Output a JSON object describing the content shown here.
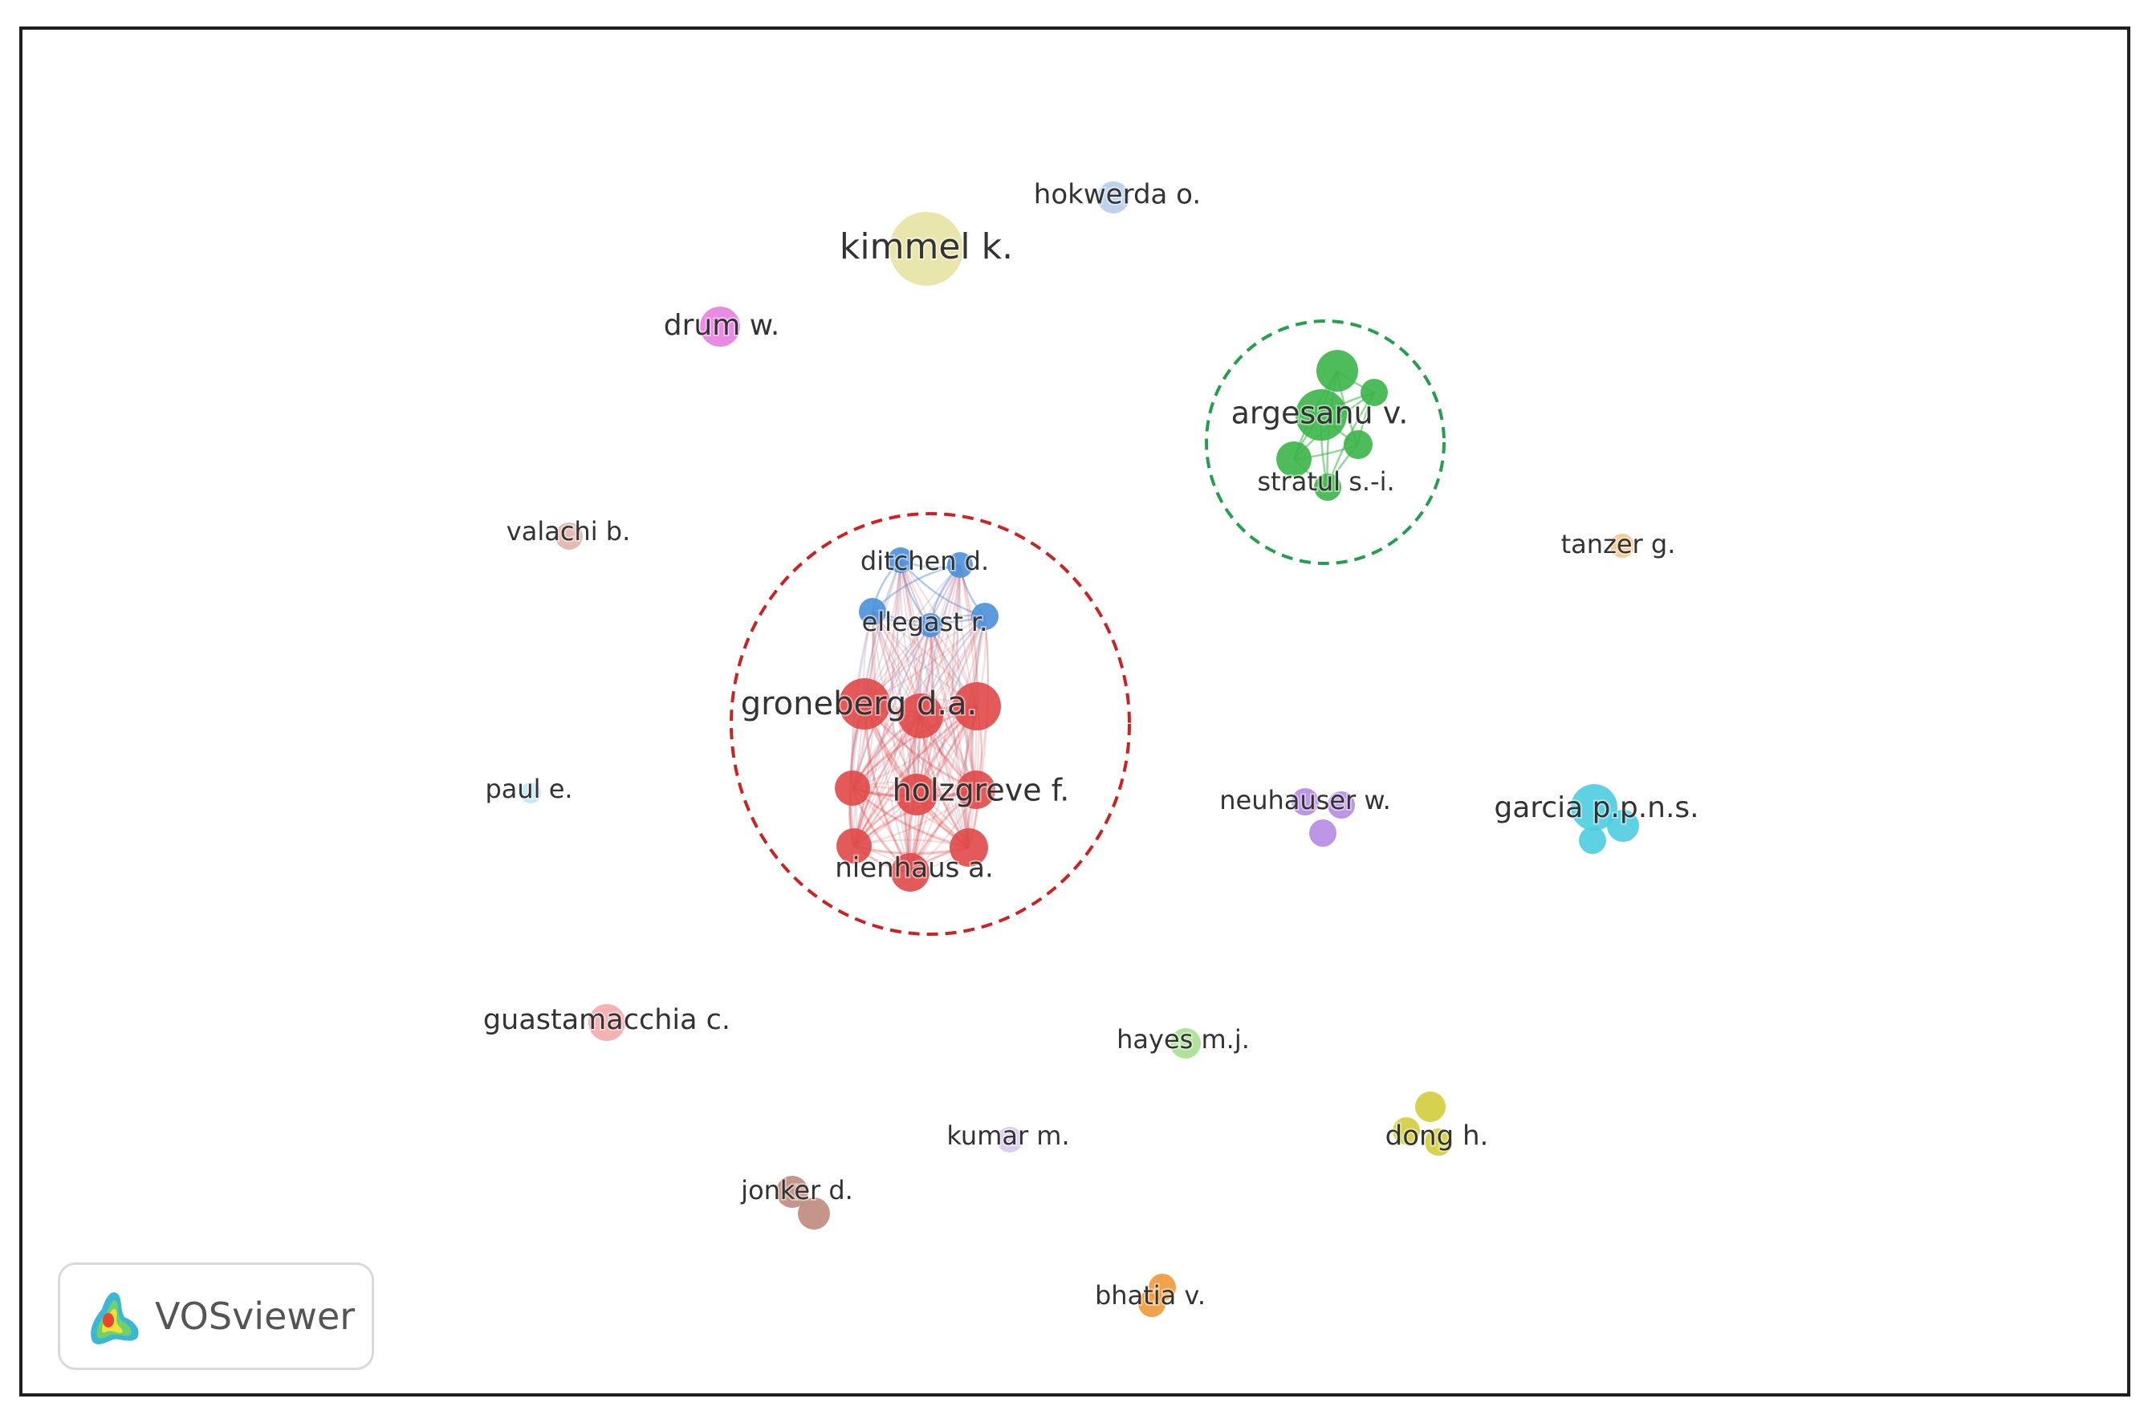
{
  "app": {
    "logo_text": "VOSviewer"
  },
  "network": {
    "clusters": [
      {
        "name": "red",
        "color": "#e04848",
        "highlight": "#cc2222",
        "nodes": [
          {
            "id": "groneberg",
            "label": "groneberg d.a."
          },
          {
            "id": "holzgreve",
            "label": "holzgreve f."
          },
          {
            "id": "nienhaus",
            "label": "nienhaus a."
          }
        ]
      },
      {
        "name": "blue",
        "color": "#4a90d9",
        "nodes": [
          {
            "id": "ditchen",
            "label": "ditchen d."
          },
          {
            "id": "ellegast",
            "label": "ellegast r."
          }
        ]
      },
      {
        "name": "green",
        "color": "#3cb54a",
        "highlight": "#22a050",
        "nodes": [
          {
            "id": "argesanu",
            "label": "argesanu v."
          },
          {
            "id": "stratul",
            "label": "stratul s.-i."
          }
        ]
      }
    ],
    "singletons": [
      {
        "id": "kimmel",
        "label": "kimmel k.",
        "color": "#e6e3a3"
      },
      {
        "id": "hokwerda",
        "label": "hokwerda o.",
        "color": "#b7cdea"
      },
      {
        "id": "drum",
        "label": "drum w.",
        "color": "#e77ee0"
      },
      {
        "id": "valachi",
        "label": "valachi b.",
        "color": "#e0b4ad"
      },
      {
        "id": "tanzer",
        "label": "tanzer g.",
        "color": "#f3c58c"
      },
      {
        "id": "paul",
        "label": "paul e.",
        "color": "#bfe8f2"
      },
      {
        "id": "neuhauser",
        "label": "neuhauser w.",
        "color": "#b58ae3"
      },
      {
        "id": "garcia",
        "label": "garcia p.p.n.s.",
        "color": "#4ccde0"
      },
      {
        "id": "guastamacchia",
        "label": "guastamacchia c.",
        "color": "#f3aaaa"
      },
      {
        "id": "hayes",
        "label": "hayes m.j.",
        "color": "#a5e08e"
      },
      {
        "id": "kumar",
        "label": "kumar m.",
        "color": "#d6c8ee"
      },
      {
        "id": "dong",
        "label": "dong h.",
        "color": "#d2cd3c"
      },
      {
        "id": "jonker",
        "label": "jonker d.",
        "color": "#c08a7c"
      },
      {
        "id": "bhatia",
        "label": "bhatia v.",
        "color": "#ef9838"
      }
    ]
  }
}
